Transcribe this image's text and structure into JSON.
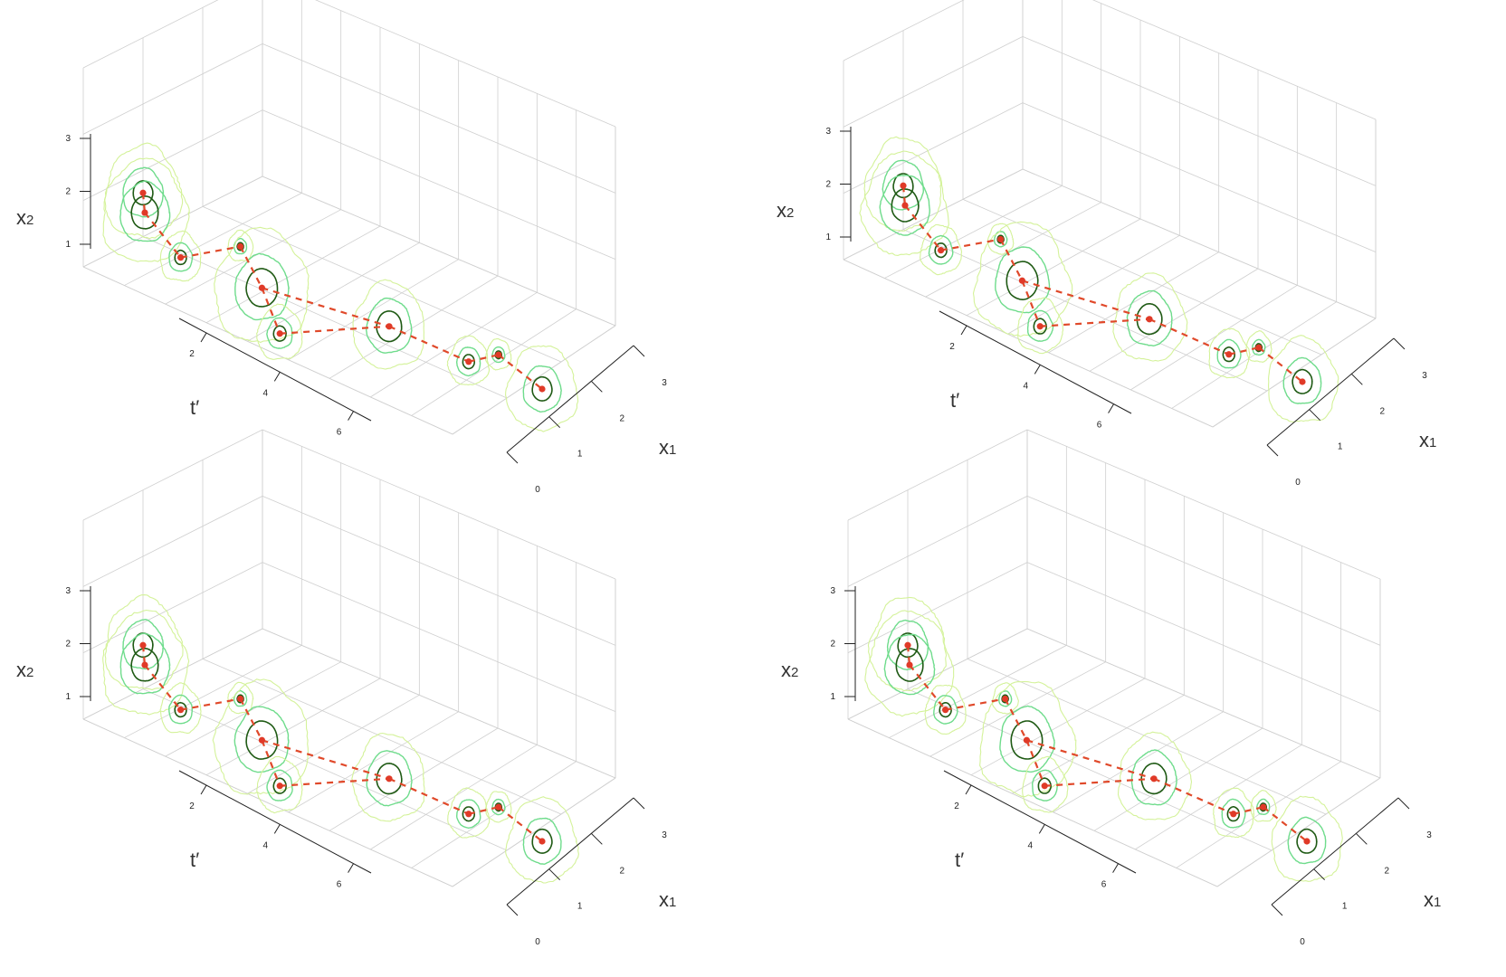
{
  "chart_data": {
    "type": "scatter",
    "layout": "2x2 grid of 3D perspective plots",
    "axes": {
      "x1": {
        "label": "x",
        "label_subscript": "1",
        "ticks": [
          "0",
          "1",
          "2",
          "3"
        ],
        "range": [
          0,
          3
        ]
      },
      "t": {
        "label": "t′",
        "ticks": [
          "2",
          "4",
          "6"
        ],
        "range": [
          1,
          7
        ]
      },
      "x2": {
        "label": "x",
        "label_subscript": "2",
        "ticks": [
          "1",
          "2",
          "3"
        ],
        "range": [
          1,
          3
        ]
      }
    },
    "grid": true,
    "colors": {
      "grid": "#cfcfcf",
      "axis": "#222222",
      "contour_outer": "#d4f29a",
      "contour_mid": "#6fdc8c",
      "contour_inner": "#1f5a14",
      "mean_point": "#e03a28",
      "trajectory": "#e0492a"
    },
    "panels": [
      {
        "name": "top-left",
        "points": [
          {
            "t": 1,
            "x1": 2.0,
            "x2": 1.8,
            "r": [
              0.22,
              0.45,
              0.85
            ]
          },
          {
            "t": 2,
            "x1": 3.0,
            "x2": 2.5,
            "r": [
              0.3,
              0.55,
              0.95
            ]
          },
          {
            "t": 2,
            "x1": 2.4,
            "x2": 1.35,
            "r": [
              0.13,
              0.26,
              0.45
            ]
          },
          {
            "t": 2,
            "x1": 1.4,
            "x2": 1.0,
            "r": [
              0.07,
              0.14,
              0.28
            ]
          },
          {
            "t": 4,
            "x1": 3.1,
            "x2": 2.2,
            "r": [
              0.35,
              0.6,
              1.05
            ]
          },
          {
            "t": 4,
            "x1": 2.8,
            "x2": 1.2,
            "r": [
              0.14,
              0.28,
              0.5
            ]
          },
          {
            "t": 5,
            "x1": 2.0,
            "x2": 1.4,
            "r": [
              0.28,
              0.5,
              0.8
            ]
          },
          {
            "t": 6,
            "x1": 1.7,
            "x2": 1.1,
            "r": [
              0.13,
              0.26,
              0.45
            ]
          },
          {
            "t": 6,
            "x1": 1.2,
            "x2": 0.95,
            "r": [
              0.07,
              0.14,
              0.28
            ]
          },
          {
            "t": 7,
            "x1": 1.5,
            "x2": 1.0,
            "r": [
              0.22,
              0.42,
              0.78
            ]
          }
        ]
      },
      {
        "name": "top-right",
        "points": [
          {
            "t": 1,
            "x1": 2.0,
            "x2": 1.8,
            "r": [
              0.22,
              0.45,
              0.85
            ]
          },
          {
            "t": 2,
            "x1": 3.0,
            "x2": 2.5,
            "r": [
              0.3,
              0.55,
              0.95
            ]
          },
          {
            "t": 2,
            "x1": 2.4,
            "x2": 1.35,
            "r": [
              0.13,
              0.26,
              0.45
            ]
          },
          {
            "t": 2,
            "x1": 1.4,
            "x2": 1.0,
            "r": [
              0.07,
              0.14,
              0.28
            ]
          },
          {
            "t": 4,
            "x1": 3.1,
            "x2": 2.2,
            "r": [
              0.35,
              0.6,
              1.05
            ]
          },
          {
            "t": 4,
            "x1": 2.8,
            "x2": 1.2,
            "r": [
              0.14,
              0.28,
              0.5
            ]
          },
          {
            "t": 5,
            "x1": 2.0,
            "x2": 1.4,
            "r": [
              0.28,
              0.5,
              0.8
            ]
          },
          {
            "t": 6,
            "x1": 1.7,
            "x2": 1.1,
            "r": [
              0.13,
              0.26,
              0.45
            ]
          },
          {
            "t": 6,
            "x1": 1.2,
            "x2": 0.95,
            "r": [
              0.07,
              0.14,
              0.28
            ]
          },
          {
            "t": 7,
            "x1": 1.5,
            "x2": 1.0,
            "r": [
              0.22,
              0.42,
              0.78
            ]
          }
        ]
      },
      {
        "name": "bottom-left",
        "points": [
          {
            "t": 1,
            "x1": 2.0,
            "x2": 1.8,
            "r": [
              0.22,
              0.45,
              0.85
            ]
          },
          {
            "t": 2,
            "x1": 3.0,
            "x2": 2.5,
            "r": [
              0.3,
              0.55,
              0.95
            ]
          },
          {
            "t": 2,
            "x1": 2.4,
            "x2": 1.35,
            "r": [
              0.13,
              0.26,
              0.45
            ]
          },
          {
            "t": 2,
            "x1": 1.4,
            "x2": 1.0,
            "r": [
              0.07,
              0.14,
              0.28
            ]
          },
          {
            "t": 4,
            "x1": 3.1,
            "x2": 2.2,
            "r": [
              0.35,
              0.6,
              1.05
            ]
          },
          {
            "t": 4,
            "x1": 2.8,
            "x2": 1.2,
            "r": [
              0.14,
              0.28,
              0.5
            ]
          },
          {
            "t": 5,
            "x1": 2.0,
            "x2": 1.4,
            "r": [
              0.28,
              0.5,
              0.8
            ]
          },
          {
            "t": 6,
            "x1": 1.7,
            "x2": 1.1,
            "r": [
              0.13,
              0.26,
              0.45
            ]
          },
          {
            "t": 6,
            "x1": 1.2,
            "x2": 0.95,
            "r": [
              0.07,
              0.14,
              0.28
            ]
          },
          {
            "t": 7,
            "x1": 1.5,
            "x2": 1.0,
            "r": [
              0.22,
              0.42,
              0.78
            ]
          }
        ]
      },
      {
        "name": "bottom-right",
        "points": [
          {
            "t": 1,
            "x1": 2.0,
            "x2": 1.8,
            "r": [
              0.22,
              0.45,
              0.85
            ]
          },
          {
            "t": 2,
            "x1": 3.0,
            "x2": 2.5,
            "r": [
              0.3,
              0.55,
              0.95
            ]
          },
          {
            "t": 2,
            "x1": 2.4,
            "x2": 1.35,
            "r": [
              0.13,
              0.26,
              0.45
            ]
          },
          {
            "t": 2,
            "x1": 1.4,
            "x2": 1.0,
            "r": [
              0.07,
              0.14,
              0.28
            ]
          },
          {
            "t": 4,
            "x1": 3.1,
            "x2": 2.2,
            "r": [
              0.35,
              0.6,
              1.05
            ]
          },
          {
            "t": 4,
            "x1": 2.8,
            "x2": 1.2,
            "r": [
              0.14,
              0.28,
              0.5
            ]
          },
          {
            "t": 5,
            "x1": 2.0,
            "x2": 1.4,
            "r": [
              0.28,
              0.5,
              0.8
            ]
          },
          {
            "t": 6,
            "x1": 1.7,
            "x2": 1.1,
            "r": [
              0.13,
              0.26,
              0.45
            ]
          },
          {
            "t": 6,
            "x1": 1.2,
            "x2": 0.95,
            "r": [
              0.07,
              0.14,
              0.28
            ]
          },
          {
            "t": 7,
            "x1": 1.5,
            "x2": 1.0,
            "r": [
              0.22,
              0.42,
              0.78
            ]
          }
        ]
      }
    ],
    "links": [
      [
        0,
        1
      ],
      [
        1,
        2
      ],
      [
        2,
        3
      ],
      [
        3,
        4
      ],
      [
        4,
        5
      ],
      [
        4,
        6
      ],
      [
        6,
        7
      ],
      [
        7,
        8
      ],
      [
        8,
        9
      ],
      [
        5,
        6
      ]
    ]
  }
}
